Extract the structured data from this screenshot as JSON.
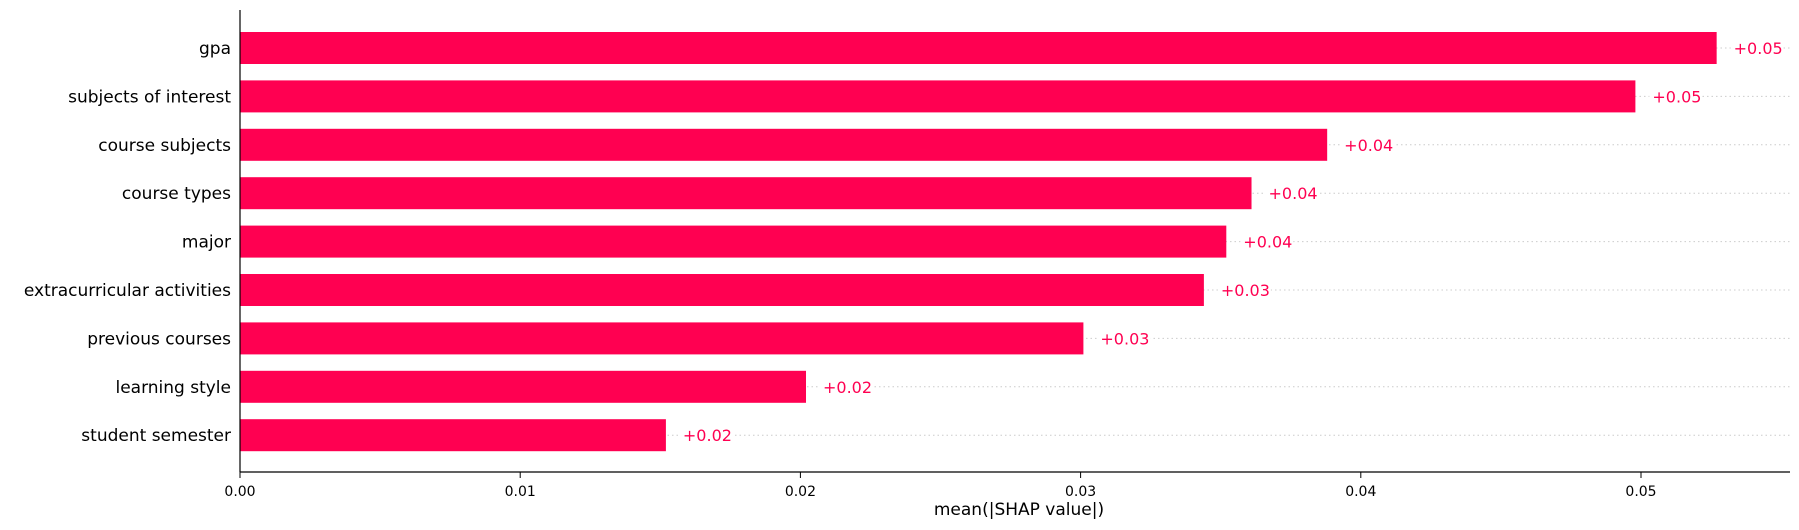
{
  "chart_data": {
    "type": "bar",
    "orientation": "horizontal",
    "categories": [
      "gpa",
      "subjects of interest",
      "course subjects",
      "course types",
      "major",
      "extracurricular activities",
      "previous courses",
      "learning style",
      "student semester"
    ],
    "values": [
      0.0527,
      0.0498,
      0.0388,
      0.0361,
      0.0352,
      0.0344,
      0.0301,
      0.0202,
      0.0152
    ],
    "value_labels": [
      "+0.05",
      "+0.05",
      "+0.04",
      "+0.04",
      "+0.04",
      "+0.03",
      "+0.03",
      "+0.02",
      "+0.02"
    ],
    "xlabel": "mean(|SHAP value|)",
    "ylabel": "",
    "title": "",
    "xlim": [
      0,
      0.058
    ],
    "x_ticks": [
      0,
      0.01,
      0.02,
      0.03,
      0.04,
      0.05
    ],
    "x_tick_labels": [
      "0.00",
      "0.01",
      "0.02",
      "0.03",
      "0.04",
      "0.05"
    ],
    "grid": "dotted row guides",
    "bar_color": "#ff0051",
    "label_color": "#ff0051",
    "guide_color": "#cccccc"
  }
}
